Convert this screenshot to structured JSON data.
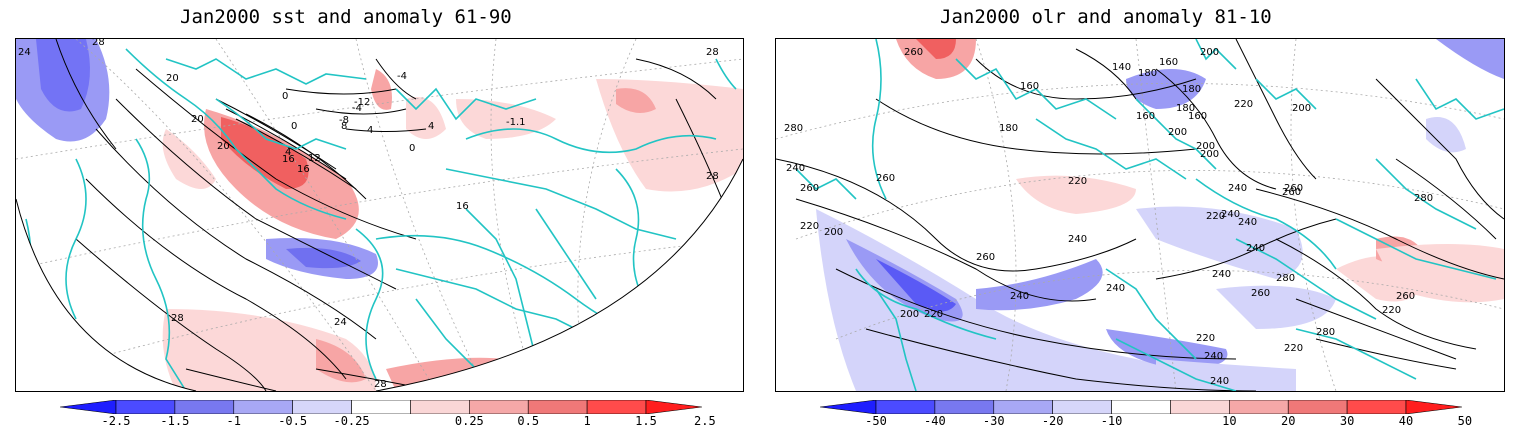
{
  "panels": [
    {
      "id": "sst",
      "title": "Jan2000 sst and anomaly 61-90",
      "contour_labels": [
        "24",
        "28",
        "28",
        "20",
        "20",
        "20",
        "16",
        "16",
        "12",
        "8",
        "4",
        "4",
        "0",
        "0",
        "-4",
        "-4",
        "-8",
        "-12",
        "-1.1",
        "0",
        "4",
        "16",
        "28",
        "28",
        "24",
        "28"
      ],
      "colorbar": {
        "tick_labels": [
          "-2.5",
          "-1.5",
          "-1",
          "-0.5",
          "-0.25",
          "0.25",
          "0.5",
          "1",
          "1.5",
          "2.5"
        ],
        "colors": [
          "#1e1eff",
          "#4b4bff",
          "#7878f0",
          "#a8a8f5",
          "#d6d6fa",
          "#ffffff",
          "#fad6d6",
          "#f5a8a8",
          "#f07878",
          "#ff4b4b",
          "#ff1e1e"
        ]
      }
    },
    {
      "id": "olr",
      "title": "Jan2000 olr and anomaly 81-10",
      "contour_labels": [
        "260",
        "280",
        "160",
        "140",
        "180",
        "160",
        "180",
        "160",
        "200",
        "220",
        "240",
        "260",
        "180",
        "200",
        "180",
        "200",
        "200",
        "160",
        "220",
        "240",
        "260",
        "280",
        "220",
        "200",
        "260",
        "240",
        "240",
        "260",
        "200",
        "220",
        "240",
        "240",
        "240",
        "240",
        "220",
        "260",
        "280",
        "260",
        "240",
        "200",
        "220",
        "220",
        "240",
        "280",
        "260",
        "220",
        "240"
      ],
      "colorbar": {
        "tick_labels": [
          "-50",
          "-40",
          "-30",
          "-20",
          "-10",
          "10",
          "20",
          "30",
          "40",
          "50"
        ],
        "colors": [
          "#1e1eff",
          "#4b4bff",
          "#7878f0",
          "#a8a8f5",
          "#d6d6fa",
          "#ffffff",
          "#fad6d6",
          "#f5a8a8",
          "#f07878",
          "#ff4b4b",
          "#ff1e1e"
        ]
      }
    }
  ],
  "colors": {
    "coastline": "#22c4c4",
    "contour": "#000000",
    "grid": "#aaaaaa",
    "neg_strong": "#5a5af5",
    "neg_mid": "#9a9af5",
    "neg_light": "#d4d4fa",
    "pos_light": "#fcd8d8",
    "pos_mid": "#f7a5a5",
    "pos_strong": "#f06060"
  }
}
